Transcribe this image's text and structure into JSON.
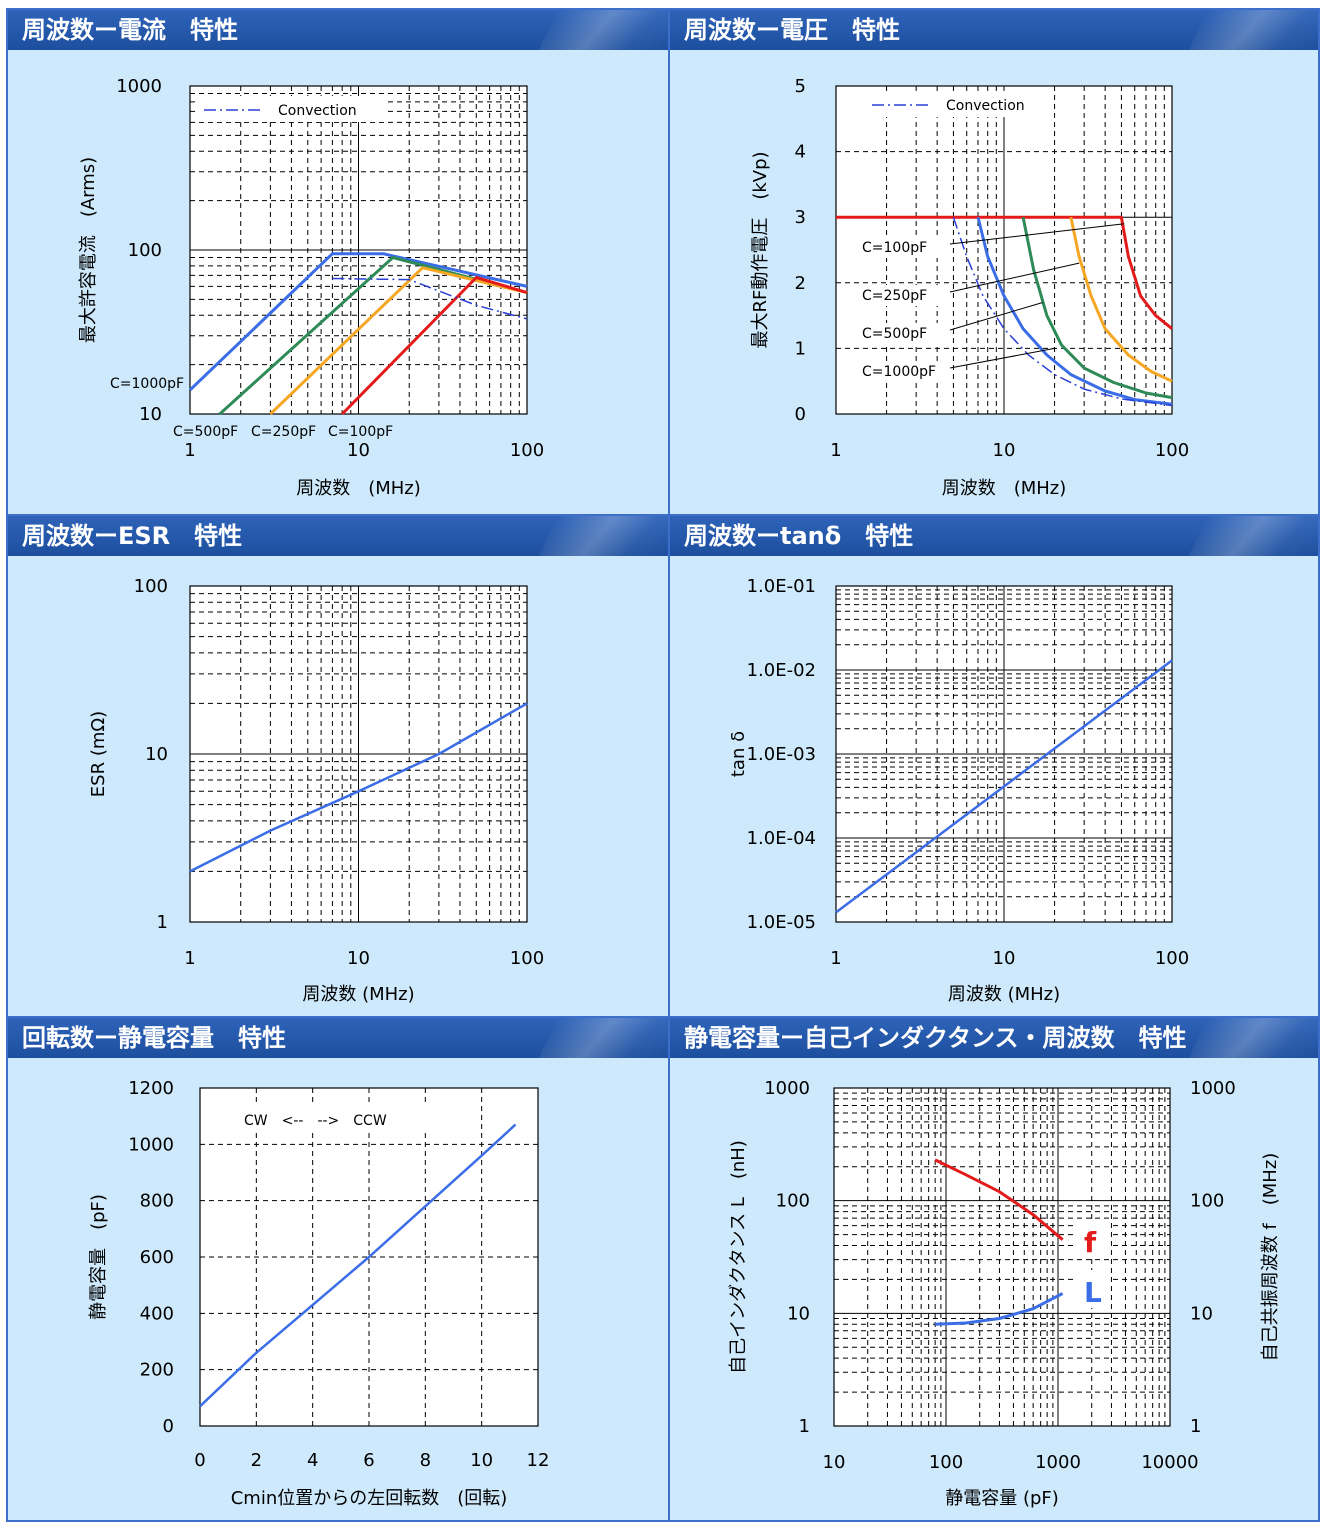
{
  "panels": [
    {
      "title": "周波数ー電流　特性"
    },
    {
      "title": "周波数ー電圧　特性"
    },
    {
      "title": "周波数ーESR　特性"
    },
    {
      "title": "周波数ーtanδ　特性"
    },
    {
      "title": "回転数ー静電容量　特性"
    },
    {
      "title": "静電容量ー自己インダクタンス・周波数　特性"
    }
  ],
  "colors": {
    "blue": "#3b6ee6",
    "green": "#2e8b57",
    "orange": "#f5a623",
    "red": "#e31b1b",
    "dash": "#2a3fd6",
    "header": "#1f4fa0",
    "bg": "#cde9fb"
  },
  "chart_data": [
    {
      "type": "line",
      "xlabel": "周波数　(MHz)",
      "ylabel": "最大許容電流　(Arms)",
      "xscale": "log",
      "yscale": "log",
      "xlim": [
        1,
        100
      ],
      "ylim": [
        10,
        1000
      ],
      "xticks": [
        "1",
        "10",
        "100"
      ],
      "yticks": [
        "10",
        "100",
        "1000"
      ],
      "legend": "Convection",
      "legend_position": "top-left",
      "series": [
        {
          "name": "C=1000pF",
          "points": [
            [
              1,
              14
            ],
            [
              7,
              95
            ],
            [
              14,
              95
            ],
            [
              100,
              60
            ]
          ]
        },
        {
          "name": "C=500pF",
          "points": [
            [
              1.5,
              10
            ],
            [
              16,
              90
            ],
            [
              100,
              55
            ]
          ]
        },
        {
          "name": "C=250pF",
          "points": [
            [
              3,
              10
            ],
            [
              24,
              78
            ],
            [
              100,
              55
            ]
          ]
        },
        {
          "name": "C=100pF",
          "points": [
            [
              8,
              10
            ],
            [
              50,
              68
            ],
            [
              100,
              55
            ]
          ]
        },
        {
          "name": "Convection",
          "points": [
            [
              7,
              67
            ],
            [
              20,
              66
            ],
            [
              50,
              46
            ],
            [
              100,
              38
            ]
          ]
        }
      ]
    },
    {
      "type": "line",
      "xlabel": "周波数　(MHz)",
      "ylabel": "最大RF動作電圧　(kVp)",
      "xscale": "log",
      "xlim": [
        1,
        100
      ],
      "ylim": [
        0,
        5
      ],
      "xticks": [
        "1",
        "10",
        "100"
      ],
      "yticks": [
        "0",
        "1",
        "2",
        "3",
        "4",
        "5"
      ],
      "legend": "Convection",
      "legend_position": "top-left",
      "labels": [
        "C=100pF",
        "C=250pF",
        "C=500pF",
        "C=1000pF"
      ],
      "series": [
        {
          "name": "C=100pF",
          "points": [
            [
              1,
              3
            ],
            [
              50,
              3
            ],
            [
              55,
              2.4
            ],
            [
              65,
              1.8
            ],
            [
              80,
              1.5
            ],
            [
              100,
              1.3
            ]
          ]
        },
        {
          "name": "C=250pF",
          "points": [
            [
              25,
              3
            ],
            [
              28,
              2.4
            ],
            [
              33,
              1.8
            ],
            [
              40,
              1.3
            ],
            [
              55,
              0.9
            ],
            [
              75,
              0.65
            ],
            [
              100,
              0.5
            ]
          ]
        },
        {
          "name": "C=500pF",
          "points": [
            [
              13,
              3
            ],
            [
              15,
              2.2
            ],
            [
              18,
              1.5
            ],
            [
              22,
              1.05
            ],
            [
              30,
              0.7
            ],
            [
              45,
              0.48
            ],
            [
              70,
              0.32
            ],
            [
              100,
              0.25
            ]
          ]
        },
        {
          "name": "C=1000pF",
          "points": [
            [
              7,
              3
            ],
            [
              8,
              2.4
            ],
            [
              10,
              1.8
            ],
            [
              13,
              1.3
            ],
            [
              18,
              0.9
            ],
            [
              25,
              0.6
            ],
            [
              40,
              0.35
            ],
            [
              60,
              0.22
            ],
            [
              100,
              0.15
            ]
          ]
        },
        {
          "name": "Convection",
          "points": [
            [
              5,
              3
            ],
            [
              6,
              2.4
            ],
            [
              7.5,
              1.8
            ],
            [
              10,
              1.3
            ],
            [
              14,
              0.9
            ],
            [
              20,
              0.6
            ],
            [
              30,
              0.38
            ],
            [
              50,
              0.23
            ],
            [
              100,
              0.13
            ]
          ]
        }
      ]
    },
    {
      "type": "line",
      "xlabel": "周波数 (MHz)",
      "ylabel": "ESR (mΩ)",
      "xscale": "log",
      "yscale": "log",
      "xlim": [
        1,
        100
      ],
      "ylim": [
        1,
        100
      ],
      "xticks": [
        "1",
        "10",
        "100"
      ],
      "yticks": [
        "1",
        "10",
        "100"
      ],
      "series": [
        {
          "points": [
            [
              1,
              2
            ],
            [
              3,
              3.5
            ],
            [
              10,
              6
            ],
            [
              30,
              10
            ],
            [
              100,
              20
            ]
          ]
        }
      ]
    },
    {
      "type": "line",
      "xlabel": "周波数 (MHz)",
      "ylabel": "tan δ",
      "xscale": "log",
      "yscale": "log",
      "xlim": [
        1,
        100
      ],
      "ylim": [
        1e-05,
        0.1
      ],
      "xticks": [
        "1",
        "10",
        "100"
      ],
      "yticks": [
        "1.0E-05",
        "1.0E-04",
        "1.0E-03",
        "1.0E-02",
        "1.0E-01"
      ],
      "series": [
        {
          "points": [
            [
              1,
              1.3e-05
            ],
            [
              100,
              0.013
            ]
          ]
        }
      ]
    },
    {
      "type": "line",
      "xlabel": "Cmin位置からの左回転数　(回転)",
      "ylabel": "静電容量　(pF)",
      "xlim": [
        0,
        12
      ],
      "ylim": [
        0,
        1200
      ],
      "xticks": [
        "0",
        "2",
        "4",
        "6",
        "8",
        "10",
        "12"
      ],
      "yticks": [
        "0",
        "200",
        "400",
        "600",
        "800",
        "1000",
        "1200"
      ],
      "legend": "CW　<--　-->　CCW",
      "series": [
        {
          "points": [
            [
              0,
              70
            ],
            [
              2,
              260
            ],
            [
              4,
              430
            ],
            [
              6,
              600
            ],
            [
              8,
              780
            ],
            [
              10,
              960
            ],
            [
              11.2,
              1070
            ]
          ]
        }
      ]
    },
    {
      "type": "line",
      "xlabel": "静電容量 (pF)",
      "ylabel": "自己インダクタンス L　(nH)",
      "y2label": "自己共振周波数 f　(MHz)",
      "xscale": "log",
      "yscale": "log",
      "xlim": [
        10,
        10000
      ],
      "ylim": [
        1,
        1000
      ],
      "xticks": [
        "10",
        "100",
        "1000",
        "10000"
      ],
      "yticks": [
        "1",
        "10",
        "100",
        "1000"
      ],
      "y2ticks": [
        "1",
        "10",
        "100",
        "1000"
      ],
      "series": [
        {
          "name": "f",
          "points": [
            [
              80,
              230
            ],
            [
              150,
              170
            ],
            [
              300,
              120
            ],
            [
              600,
              75
            ],
            [
              1100,
              45
            ]
          ]
        },
        {
          "name": "L",
          "points": [
            [
              80,
              8
            ],
            [
              150,
              8.2
            ],
            [
              300,
              9
            ],
            [
              600,
              11
            ],
            [
              1100,
              15
            ]
          ]
        }
      ]
    }
  ]
}
